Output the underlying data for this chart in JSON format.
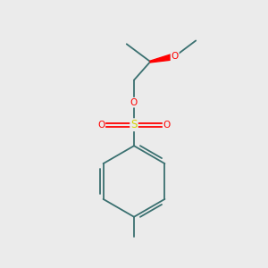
{
  "background_color": "#ebebeb",
  "bond_color": "#3a7070",
  "atom_colors": {
    "O": "#ff0000",
    "S": "#d4d400",
    "C": "#3a7070"
  },
  "fig_width": 3.0,
  "fig_height": 3.0,
  "dpi": 100,
  "lw": 1.3
}
